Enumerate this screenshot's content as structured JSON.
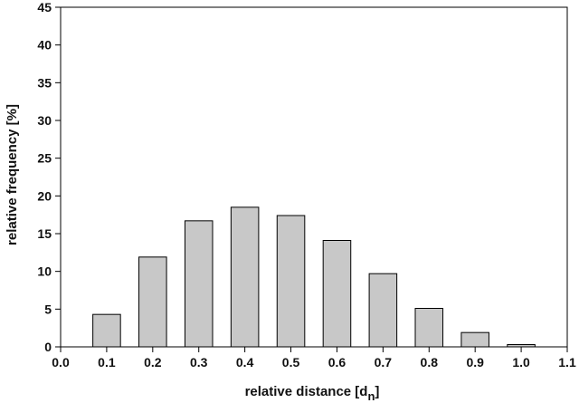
{
  "chart_data": {
    "type": "bar",
    "xlabel": "relative distance [d",
    "xlabel_subscript": "n",
    "xlabel_suffix": "]",
    "ylabel": "relative frequency [%]",
    "xlim": [
      0.0,
      1.1
    ],
    "ylim": [
      0,
      45
    ],
    "x_ticks": [
      "0.0",
      "0.1",
      "0.2",
      "0.3",
      "0.4",
      "0.5",
      "0.6",
      "0.7",
      "0.8",
      "0.9",
      "1.0",
      "1.1"
    ],
    "y_ticks": [
      "0",
      "5",
      "10",
      "15",
      "20",
      "25",
      "30",
      "35",
      "40",
      "45"
    ],
    "x": [
      0.1,
      0.2,
      0.3,
      0.4,
      0.5,
      0.6,
      0.7,
      0.8,
      0.9,
      1.0
    ],
    "values": [
      4.3,
      11.9,
      16.7,
      18.5,
      17.4,
      14.1,
      9.7,
      5.1,
      1.9,
      0.3
    ],
    "bar_width": 0.06,
    "grid": false,
    "colors": {
      "bar_fill": "#c8c8c8",
      "bar_stroke": "#000000",
      "axis": "#000000"
    }
  }
}
